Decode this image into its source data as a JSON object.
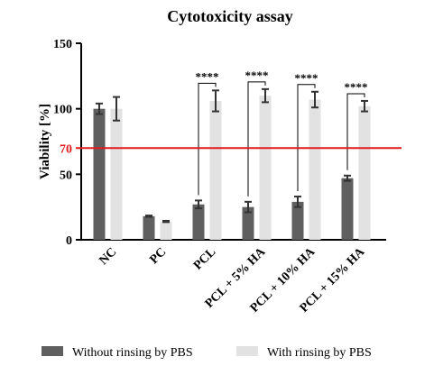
{
  "chart_data": {
    "type": "bar",
    "title": "Cytotoxicity assay",
    "ylabel": "Viability [%]",
    "xlabel": "",
    "ylim": [
      0,
      150
    ],
    "yticks": [
      0,
      50,
      100,
      150
    ],
    "categories": [
      "NC",
      "PC",
      "PCL",
      "PCL + 5% HA",
      "PCL + 10% HA",
      "PCL + 15% HA"
    ],
    "series": [
      {
        "name": "Without rinsing by PBS",
        "color": "#5f5f5f",
        "values": [
          100,
          18,
          27,
          25,
          29,
          47
        ],
        "errors": [
          4,
          0.5,
          3,
          4,
          4,
          2
        ]
      },
      {
        "name": "With rinsing by PBS",
        "color": "#e2e2e2",
        "values": [
          100,
          14,
          106,
          110,
          107,
          102
        ],
        "errors": [
          9,
          0.5,
          8,
          5,
          6,
          4
        ]
      }
    ],
    "reference_line": {
      "value": 70,
      "label": "70",
      "color": "#e01c1c"
    },
    "significance": [
      {
        "category": "PCL",
        "label": "****"
      },
      {
        "category": "PCL + 5% HA",
        "label": "****"
      },
      {
        "category": "PCL + 10% HA",
        "label": "****"
      },
      {
        "category": "PCL + 15% HA",
        "label": "****"
      }
    ],
    "grid": false,
    "legend_position": "bottom"
  }
}
